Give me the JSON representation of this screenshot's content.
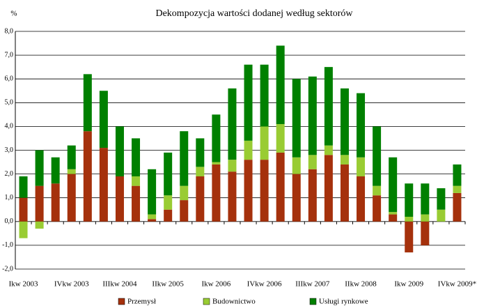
{
  "chart_data": {
    "type": "bar",
    "stacked": true,
    "title": "Dekompozycja wartości dodanej według sektorów",
    "y_label": "%",
    "categories": [
      "Ikw 2003",
      null,
      null,
      "IVkw 2003",
      null,
      null,
      "IIIkw 2004",
      null,
      null,
      "IIkw 2005",
      null,
      null,
      "Ikw 2006",
      null,
      null,
      "IVkw 2006",
      null,
      null,
      "IIIkw 2007",
      null,
      null,
      "IIkw 2008",
      null,
      null,
      "Ikw 2009",
      null,
      null,
      "IVkw 2009*"
    ],
    "series": [
      {
        "name": "Przemysł",
        "color": "#a5310c",
        "values": [
          1.0,
          1.5,
          1.6,
          2.0,
          3.8,
          3.1,
          1.9,
          1.5,
          0.1,
          0.5,
          0.9,
          1.9,
          2.4,
          2.1,
          2.6,
          2.6,
          2.9,
          2.0,
          2.2,
          2.8,
          2.4,
          1.9,
          1.1,
          0.3,
          -1.3,
          -1.0,
          0.0,
          1.2
        ]
      },
      {
        "name": "Budownictwo",
        "color": "#99cc33",
        "values": [
          -0.7,
          -0.3,
          0.0,
          0.2,
          0.0,
          0.0,
          0.0,
          0.4,
          0.2,
          0.6,
          0.6,
          0.4,
          0.1,
          0.5,
          0.8,
          1.4,
          1.2,
          0.7,
          0.6,
          0.4,
          0.4,
          0.8,
          0.4,
          0.1,
          0.2,
          0.3,
          0.5,
          0.3
        ]
      },
      {
        "name": "Usługi rynkowe",
        "color": "#008000",
        "values": [
          0.9,
          1.5,
          1.1,
          1.0,
          2.4,
          2.4,
          2.1,
          1.6,
          1.9,
          1.8,
          2.3,
          1.2,
          2.0,
          3.0,
          3.2,
          2.6,
          3.3,
          3.3,
          3.3,
          3.3,
          2.8,
          2.7,
          2.5,
          2.3,
          1.4,
          1.3,
          0.9,
          0.9
        ]
      }
    ],
    "ylim": [
      -2,
      8
    ],
    "yticks": [
      {
        "value": -2,
        "label": "-2,0"
      },
      {
        "value": -1,
        "label": "-1,0"
      },
      {
        "value": 0,
        "label": "0,0"
      },
      {
        "value": 1,
        "label": "1,0"
      },
      {
        "value": 2,
        "label": "2,0"
      },
      {
        "value": 3,
        "label": "3,0"
      },
      {
        "value": 4,
        "label": "4,0"
      },
      {
        "value": 5,
        "label": "5,0"
      },
      {
        "value": 6,
        "label": "6,0"
      },
      {
        "value": 7,
        "label": "7,0"
      },
      {
        "value": 8,
        "label": "8,0"
      }
    ],
    "grid": true,
    "legend": "bottom"
  }
}
